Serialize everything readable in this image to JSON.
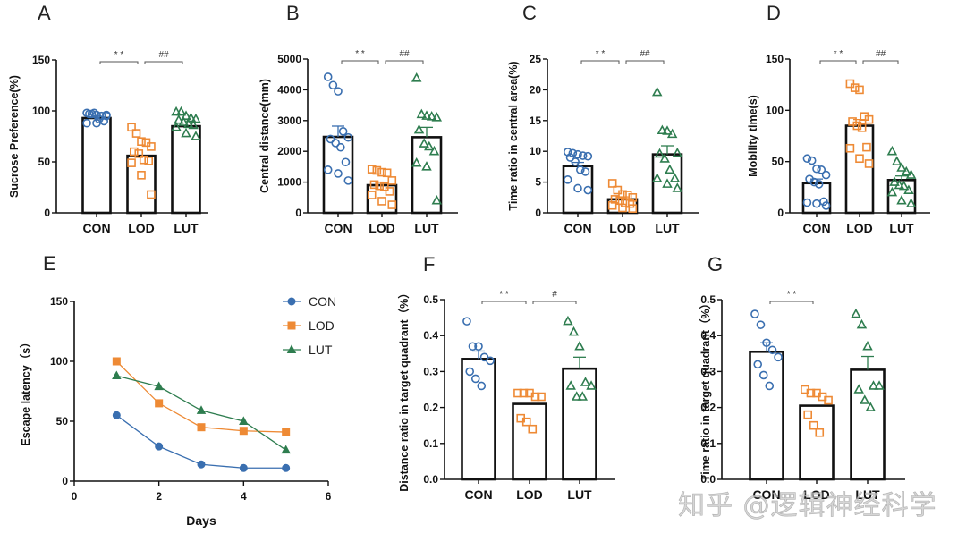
{
  "colors": {
    "CON": "#3a6fb0",
    "LOD": "#ee8a35",
    "LUT": "#2e7d4f",
    "axis": "#111111"
  },
  "watermark": "知乎 @逻辑神经科学",
  "chart_data": [
    {
      "id": "A",
      "type": "bar",
      "panel_label": "A",
      "ylabel": "Sucrose Preference(%)",
      "xlabel": "",
      "categories": [
        "CON",
        "LOD",
        "LUT"
      ],
      "ylim": [
        0,
        150
      ],
      "yticks": [
        "0",
        "50",
        "100",
        "150"
      ],
      "ytick_values": [
        0,
        50,
        100,
        150
      ],
      "means": [
        93,
        56,
        85
      ],
      "sem": [
        0,
        0,
        0
      ],
      "points": [
        [
          98,
          97,
          96,
          95,
          96,
          97,
          98,
          92,
          90,
          88,
          88,
          95
        ],
        [
          84,
          78,
          70,
          69,
          65,
          60,
          58,
          52,
          51,
          49,
          37,
          18
        ],
        [
          99,
          99,
          95,
          93,
          92,
          91,
          89,
          87,
          86,
          84,
          78,
          75
        ]
      ],
      "significance": [
        {
          "from": "CON",
          "to": "LOD",
          "label": "* *"
        },
        {
          "from": "LOD",
          "to": "LUT",
          "label": "##"
        }
      ]
    },
    {
      "id": "B",
      "type": "bar",
      "panel_label": "B",
      "ylabel": "Central distance(mm)",
      "xlabel": "",
      "categories": [
        "CON",
        "LOD",
        "LUT"
      ],
      "ylim": [
        0,
        5000
      ],
      "yticks": [
        "0",
        "1000",
        "2000",
        "3000",
        "4000",
        "5000"
      ],
      "ytick_values": [
        0,
        1000,
        2000,
        3000,
        4000,
        5000
      ],
      "means": [
        2470,
        900,
        2460
      ],
      "sem": [
        350,
        0,
        320
      ],
      "points": [
        [
          4420,
          4150,
          3950,
          2650,
          2450,
          2400,
          2270,
          2130,
          1650,
          1400,
          1280,
          1050
        ],
        [
          1420,
          1380,
          1320,
          1300,
          1050,
          920,
          880,
          850,
          700,
          580,
          380,
          260
        ],
        [
          4380,
          3200,
          3150,
          3130,
          3100,
          2700,
          2250,
          2150,
          2000,
          1620,
          1500,
          400
        ]
      ],
      "significance": [
        {
          "from": "CON",
          "to": "LOD",
          "label": "* *"
        },
        {
          "from": "LOD",
          "to": "LUT",
          "label": "##"
        }
      ]
    },
    {
      "id": "C",
      "type": "bar",
      "panel_label": "C",
      "ylabel": "Time ratio in central area(%)",
      "xlabel": "",
      "categories": [
        "CON",
        "LOD",
        "LUT"
      ],
      "ylim": [
        0,
        25
      ],
      "yticks": [
        "0",
        "5",
        "10",
        "15",
        "20",
        "25"
      ],
      "ytick_values": [
        0,
        5,
        10,
        15,
        20,
        25
      ],
      "means": [
        7.6,
        2.2,
        9.5
      ],
      "sem": [
        0.6,
        0.4,
        1.4
      ],
      "points": [
        [
          9.9,
          9.7,
          9.5,
          9.3,
          9.2,
          9.0,
          8.3,
          7.0,
          6.7,
          5.4,
          4.0,
          3.7
        ],
        [
          4.8,
          3.7,
          3.0,
          2.9,
          2.5,
          2.2,
          2.0,
          1.6,
          1.5,
          1.2,
          0.8,
          0.7
        ],
        [
          19.6,
          13.4,
          13.3,
          12.8,
          9.7,
          9.6,
          8.8,
          7.0,
          5.6,
          5.6,
          4.7,
          4.0
        ]
      ],
      "significance": [
        {
          "from": "CON",
          "to": "LOD",
          "label": "* *"
        },
        {
          "from": "LOD",
          "to": "LUT",
          "label": "##"
        }
      ]
    },
    {
      "id": "D",
      "type": "bar",
      "panel_label": "D",
      "ylabel": "Mobility time(s)",
      "xlabel": "",
      "categories": [
        "CON",
        "LOD",
        "LUT"
      ],
      "ylim": [
        0,
        150
      ],
      "yticks": [
        "0",
        "50",
        "100",
        "150"
      ],
      "ytick_values": [
        0,
        50,
        100,
        150
      ],
      "means": [
        29,
        85,
        32
      ],
      "sem": [
        4,
        6,
        4
      ],
      "points": [
        [
          53,
          51,
          43,
          42,
          37,
          33,
          30,
          28,
          11,
          10,
          9,
          7
        ],
        [
          126,
          122,
          120,
          94,
          91,
          89,
          85,
          83,
          64,
          63,
          53,
          48
        ],
        [
          60,
          50,
          44,
          40,
          37,
          30,
          27,
          26,
          22,
          20,
          12,
          9
        ]
      ],
      "significance": [
        {
          "from": "CON",
          "to": "LOD",
          "label": "* *"
        },
        {
          "from": "LOD",
          "to": "LUT",
          "label": "##"
        }
      ]
    },
    {
      "id": "E",
      "type": "line",
      "panel_label": "E",
      "ylabel": "Escape latency（s）",
      "xlabel": "Days",
      "x": [
        1,
        2,
        3,
        4,
        5
      ],
      "xlim": [
        0,
        6
      ],
      "xticks": [
        "0",
        "2",
        "4",
        "6"
      ],
      "xtick_values": [
        0,
        2,
        4,
        6
      ],
      "ylim": [
        0,
        150
      ],
      "yticks": [
        "0",
        "50",
        "100",
        "150"
      ],
      "ytick_values": [
        0,
        50,
        100,
        150
      ],
      "legend_position": "top-right",
      "series": [
        {
          "name": "CON",
          "marker": "circle",
          "values": [
            55,
            29,
            14,
            11,
            11
          ]
        },
        {
          "name": "LOD",
          "marker": "square",
          "values": [
            100,
            65,
            45,
            42,
            41
          ]
        },
        {
          "name": "LUT",
          "marker": "triangle",
          "values": [
            88,
            79,
            59,
            50,
            26
          ]
        }
      ]
    },
    {
      "id": "F",
      "type": "bar",
      "panel_label": "F",
      "ylabel": "Distance ratio in target quadrant（%）",
      "xlabel": "",
      "categories": [
        "CON",
        "LOD",
        "LUT"
      ],
      "ylim": [
        0,
        0.5
      ],
      "yticks": [
        "0.0",
        "0.1",
        "0.2",
        "0.3",
        "0.4",
        "0.5"
      ],
      "ytick_values": [
        0,
        0.1,
        0.2,
        0.3,
        0.4,
        0.5
      ],
      "means": [
        0.335,
        0.21,
        0.308
      ],
      "sem": [
        0.022,
        0,
        0.032
      ],
      "points": [
        [
          0.44,
          0.37,
          0.37,
          0.34,
          0.33,
          0.3,
          0.28,
          0.26
        ],
        [
          0.24,
          0.24,
          0.24,
          0.23,
          0.23,
          0.17,
          0.16,
          0.14
        ],
        [
          0.44,
          0.41,
          0.37,
          0.27,
          0.26,
          0.26,
          0.23,
          0.23
        ]
      ],
      "significance": [
        {
          "from": "CON",
          "to": "LOD",
          "label": "* *"
        },
        {
          "from": "LOD",
          "to": "LUT",
          "label": "#"
        }
      ]
    },
    {
      "id": "G",
      "type": "bar",
      "panel_label": "G",
      "ylabel": "Time ratio in target quadrant（%）",
      "xlabel": "",
      "categories": [
        "CON",
        "LOD",
        "LUT"
      ],
      "ylim": [
        0,
        0.5
      ],
      "yticks": [
        "0.0",
        "0.1",
        "0.2",
        "0.3",
        "0.4",
        "0.5"
      ],
      "ytick_values": [
        0,
        0.1,
        0.2,
        0.3,
        0.4,
        0.5
      ],
      "means": [
        0.355,
        0.205,
        0.305
      ],
      "sem": [
        0.025,
        0,
        0.037
      ],
      "points": [
        [
          0.46,
          0.43,
          0.38,
          0.36,
          0.34,
          0.32,
          0.29,
          0.26
        ],
        [
          0.25,
          0.24,
          0.24,
          0.23,
          0.22,
          0.18,
          0.15,
          0.13
        ],
        [
          0.46,
          0.43,
          0.37,
          0.26,
          0.26,
          0.25,
          0.22,
          0.2
        ]
      ],
      "significance": [
        {
          "from": "CON",
          "to": "LOD",
          "label": "* *"
        }
      ]
    }
  ]
}
